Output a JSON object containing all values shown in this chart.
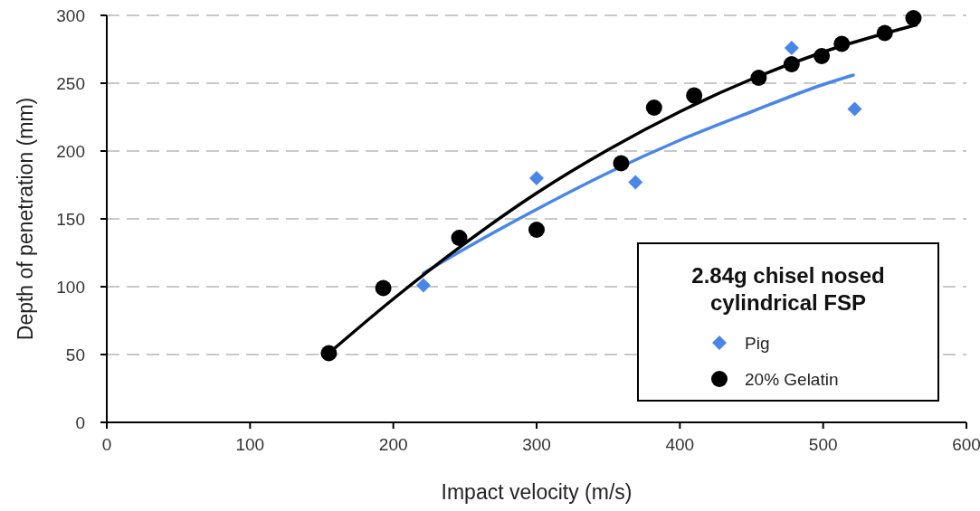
{
  "chart_data": {
    "type": "scatter",
    "xlabel": "Impact velocity (m/s)",
    "ylabel": "Depth of penetration (mm)",
    "legend_title": "2.84g chisel nosed cylindrical FSP",
    "xlim": [
      0,
      600
    ],
    "xticks": [
      0,
      100,
      200,
      300,
      400,
      500,
      600
    ],
    "ylim": [
      0,
      300
    ],
    "yticks": [
      0,
      50,
      100,
      150,
      200,
      250,
      300
    ],
    "grid": "y",
    "legend": "bottom right",
    "series": [
      {
        "name": "Pig",
        "marker": "diamond",
        "color": "#4a86e8",
        "x": [
          221,
          300,
          369,
          478,
          522
        ],
        "values": [
          101,
          180,
          177,
          276,
          231
        ]
      },
      {
        "name": "20% Gelatin",
        "marker": "circle",
        "color": "#000000",
        "x": [
          155,
          193,
          246,
          300,
          359,
          382,
          410,
          455,
          478,
          499,
          513,
          543,
          563
        ],
        "values": [
          51,
          99,
          136,
          142,
          191,
          232,
          241,
          254,
          264,
          270,
          279,
          287,
          298
        ]
      },
      {
        "type": "line",
        "marker": "none",
        "color": "#4a86e8",
        "x": [
          221,
          250,
          300,
          350,
          400,
          450,
          500,
          521
        ],
        "values": [
          110,
          128,
          157,
          184,
          208,
          229,
          249,
          256
        ]
      },
      {
        "type": "line",
        "marker": "none",
        "color": "#000000",
        "x": [
          155,
          200,
          250,
          300,
          350,
          400,
          450,
          500,
          565
        ],
        "values": [
          51,
          91,
          132,
          169,
          201,
          229,
          253,
          273,
          293
        ]
      }
    ]
  }
}
